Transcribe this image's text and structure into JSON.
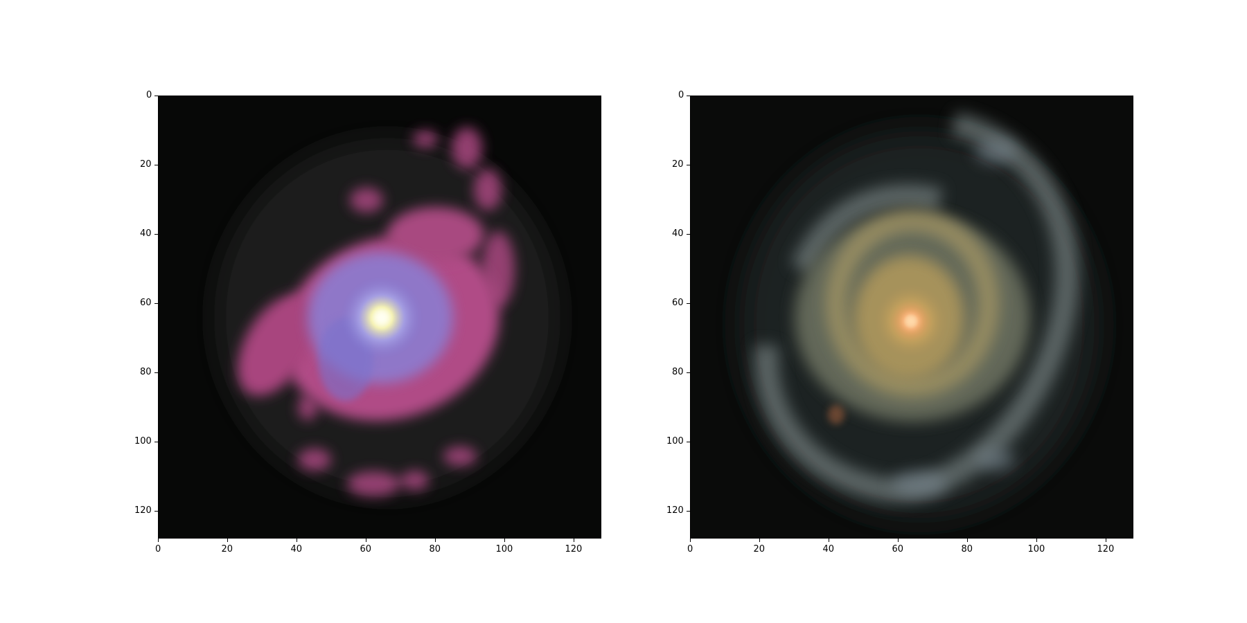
{
  "panels": [
    {
      "name": "left-galaxy-image",
      "xlim": [
        0,
        128
      ],
      "ylim": [
        128,
        0
      ],
      "xticks": [
        "0",
        "20",
        "40",
        "60",
        "80",
        "100",
        "120"
      ],
      "yticks": [
        "0",
        "20",
        "40",
        "60",
        "80",
        "100",
        "120"
      ],
      "description_colors": {
        "background": "#080808",
        "disk": "#b04c86",
        "core": "#fffbd0",
        "inner": "#8d83d8"
      }
    },
    {
      "name": "right-galaxy-image",
      "xlim": [
        0,
        128
      ],
      "ylim": [
        128,
        0
      ],
      "xticks": [
        "0",
        "20",
        "40",
        "60",
        "80",
        "100",
        "120"
      ],
      "yticks": [
        "0",
        "20",
        "40",
        "60",
        "80",
        "100",
        "120"
      ],
      "description_colors": {
        "background": "#0b0c0b",
        "disk": "#6c7265",
        "core": "#ffb070",
        "inner": "#c9a35c"
      }
    }
  ]
}
